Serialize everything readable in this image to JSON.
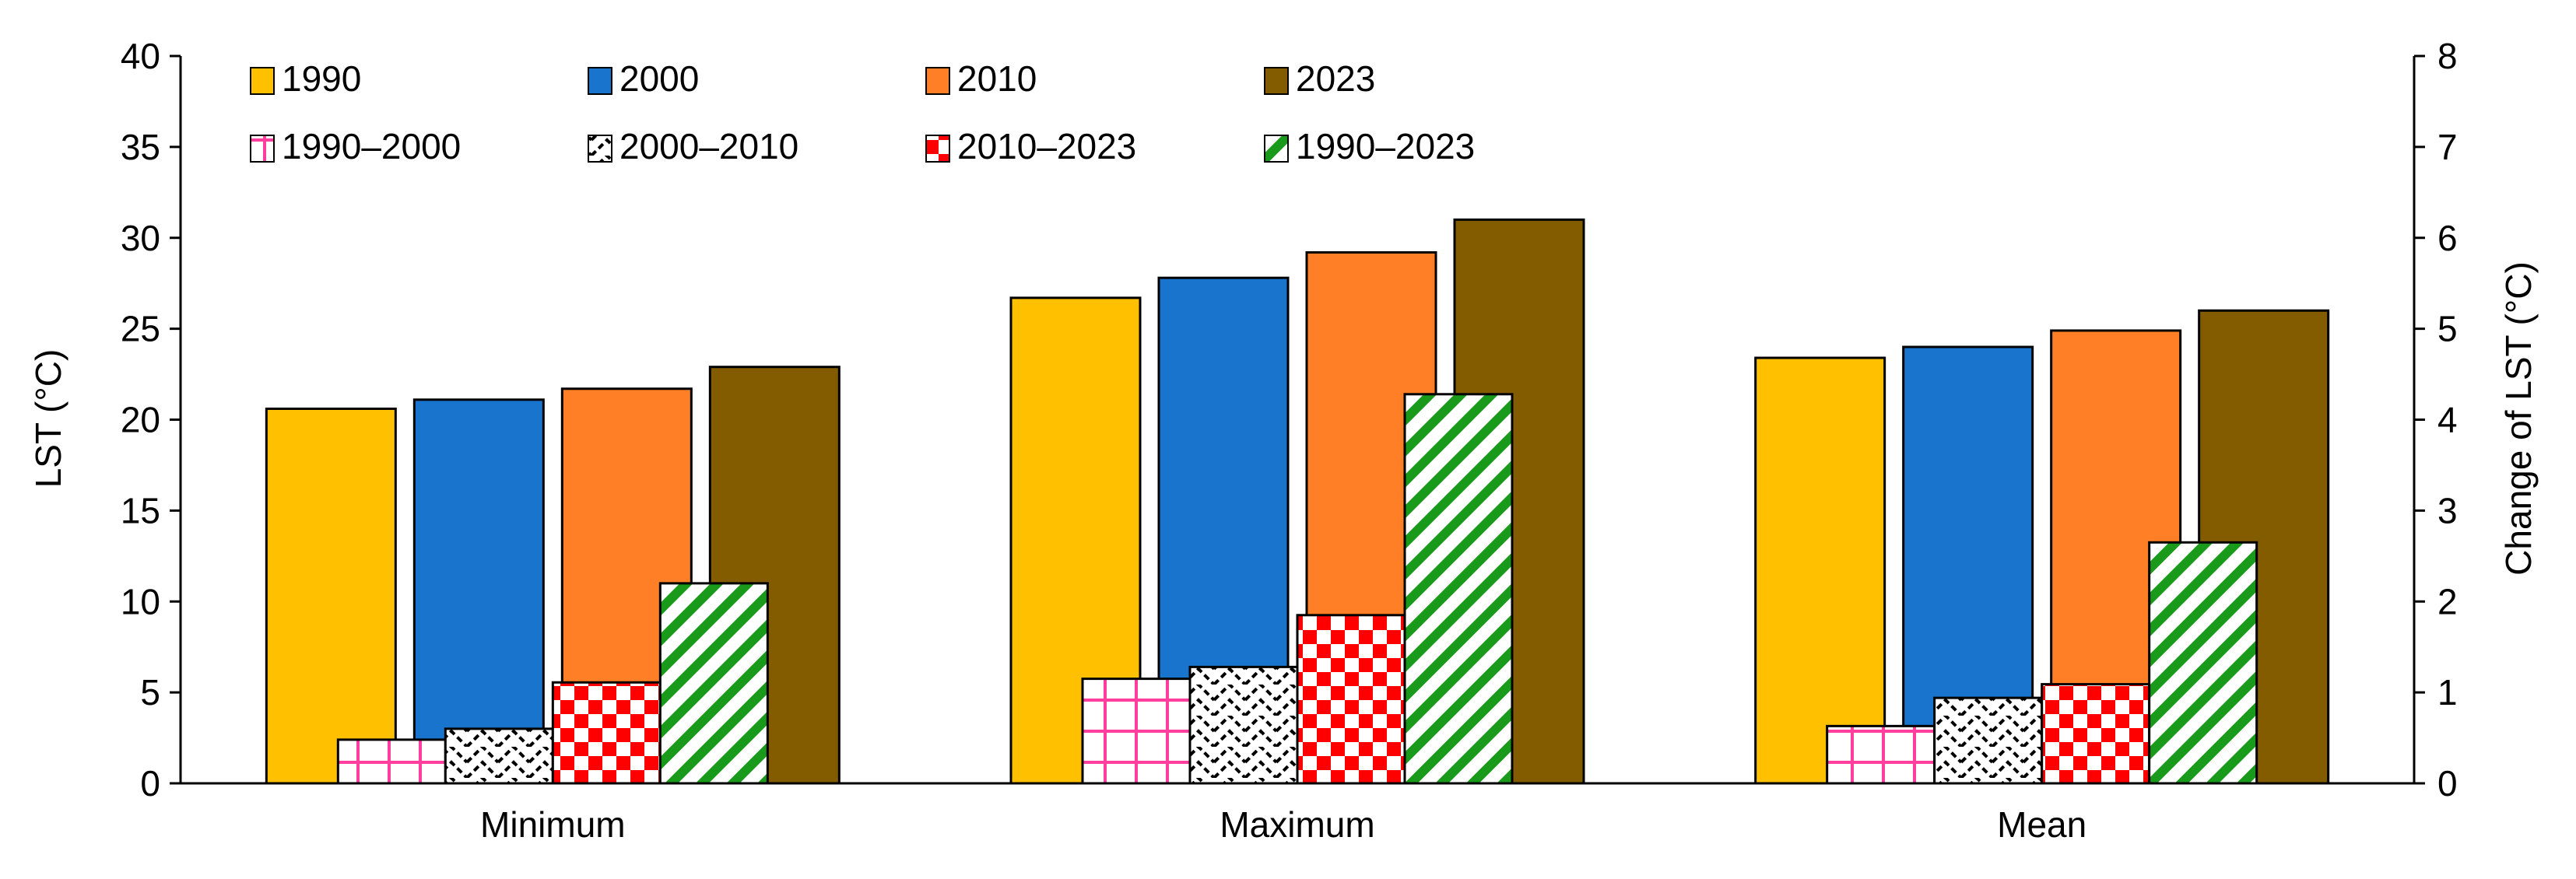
{
  "chart_data": {
    "type": "bar",
    "categories": [
      "Minimum",
      "Maximum",
      "Mean"
    ],
    "ylabel": "LST (°C)",
    "y2label": "Change of LST  (°C)",
    "ylim": [
      0,
      40
    ],
    "y2lim": [
      0,
      8
    ],
    "yticks": [
      "0",
      "5",
      "10",
      "15",
      "20",
      "25",
      "30",
      "35",
      "40"
    ],
    "y2ticks": [
      "0",
      "1",
      "2",
      "3",
      "4",
      "5",
      "6",
      "7",
      "8"
    ],
    "grid": false,
    "legend_position": "top-left",
    "series": [
      {
        "name": "1990",
        "axis": "left",
        "color": "#FFC000",
        "values": [
          20.6,
          26.7,
          23.4
        ]
      },
      {
        "name": "2000",
        "axis": "left",
        "color": "#1874CD",
        "values": [
          21.1,
          27.8,
          24.0
        ]
      },
      {
        "name": "2010",
        "axis": "left",
        "color": "#FF7F27",
        "values": [
          21.7,
          29.2,
          24.9
        ]
      },
      {
        "name": "2023",
        "axis": "left",
        "color": "#835C00",
        "values": [
          22.9,
          31.0,
          26.0
        ]
      }
    ],
    "change_series": [
      {
        "name": "1990–2000",
        "axis": "right",
        "pattern": "grid",
        "color": "#FF3E9E",
        "values": [
          0.48,
          1.15,
          0.63
        ]
      },
      {
        "name": "2000–2010",
        "axis": "right",
        "pattern": "zigzag",
        "color": "#000000",
        "values": [
          0.6,
          1.28,
          0.94
        ]
      },
      {
        "name": "2010–2023",
        "axis": "right",
        "pattern": "checker",
        "color": "#FF0000",
        "values": [
          1.11,
          1.85,
          1.09
        ]
      },
      {
        "name": "1990–2023",
        "axis": "right",
        "pattern": "diagonal",
        "color": "#1A9A1A",
        "values": [
          2.2,
          4.28,
          2.65
        ]
      }
    ]
  }
}
